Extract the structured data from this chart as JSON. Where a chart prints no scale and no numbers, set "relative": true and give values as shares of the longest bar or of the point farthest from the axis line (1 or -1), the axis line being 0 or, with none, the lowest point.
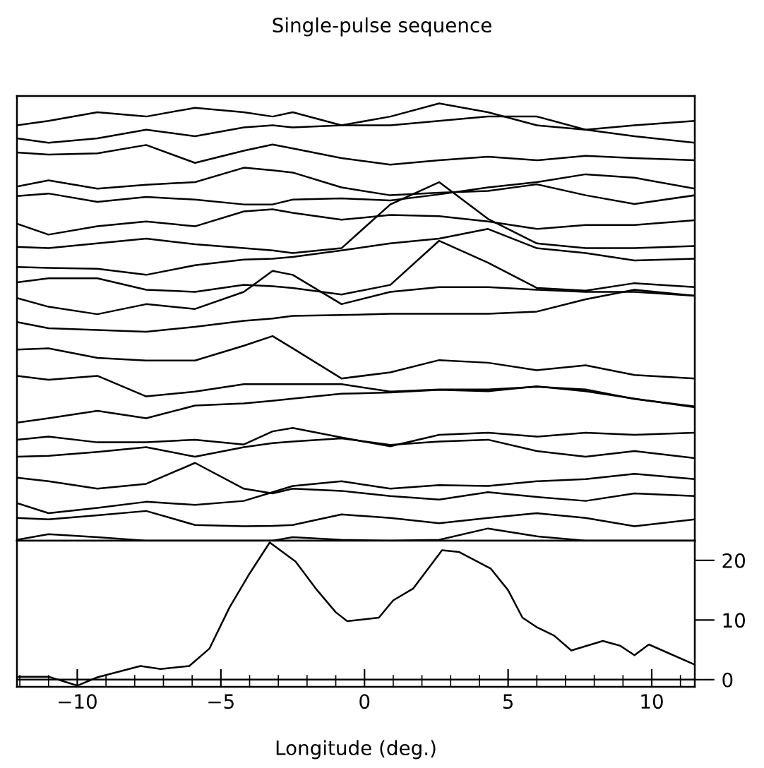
{
  "chart_data": [
    {
      "type": "line",
      "title": "Single-pulse sequence",
      "relative": true,
      "tick_labels": false,
      "xlim": [
        -12.1,
        11.5
      ],
      "x": [
        -12.1,
        -11.0,
        -9.3,
        -7.6,
        -5.9,
        -4.2,
        -3.2,
        -2.5,
        -0.8,
        0.9,
        2.6,
        4.3,
        6.0,
        7.7,
        9.4,
        11.5
      ],
      "series": [
        {
          "color": "#000000",
          "values": [
            0.95,
            0.96,
            0.98,
            0.97,
            0.99,
            0.98,
            0.97,
            0.98,
            0.95,
            0.97,
            1.0,
            0.98,
            0.95,
            0.94,
            0.95,
            0.96
          ]
        },
        {
          "color": "#000000",
          "values": [
            0.92,
            0.91,
            0.92,
            0.94,
            0.925,
            0.945,
            0.95,
            0.945,
            0.95,
            0.95,
            0.96,
            0.97,
            0.97,
            0.94,
            0.925,
            0.91
          ]
        },
        {
          "color": "#000000",
          "values": [
            0.888,
            0.883,
            0.886,
            0.905,
            0.864,
            0.892,
            0.906,
            0.897,
            0.875,
            0.86,
            0.87,
            0.878,
            0.87,
            0.88,
            0.875,
            0.87
          ]
        },
        {
          "color": "#000000",
          "values": [
            0.81,
            0.824,
            0.805,
            0.814,
            0.82,
            0.853,
            0.847,
            0.842,
            0.808,
            0.79,
            0.796,
            0.8,
            0.815,
            0.79,
            0.77,
            0.79
          ]
        },
        {
          "color": "#000000",
          "values": [
            0.788,
            0.794,
            0.775,
            0.786,
            0.78,
            0.769,
            0.769,
            0.78,
            0.783,
            0.778,
            0.792,
            0.808,
            0.82,
            0.838,
            0.83,
            0.805
          ]
        },
        {
          "color": "#000000",
          "values": [
            0.725,
            0.7,
            0.719,
            0.73,
            0.719,
            0.753,
            0.758,
            0.75,
            0.734,
            0.745,
            0.742,
            0.73,
            0.713,
            0.722,
            0.722,
            0.733
          ]
        },
        {
          "color": "#000000",
          "values": [
            0.672,
            0.669,
            0.68,
            0.691,
            0.678,
            0.669,
            0.664,
            0.658,
            0.669,
            0.769,
            0.82,
            0.736,
            0.68,
            0.669,
            0.669,
            0.674
          ]
        },
        {
          "color": "#000000",
          "values": [
            0.626,
            0.624,
            0.622,
            0.608,
            0.63,
            0.643,
            0.645,
            0.649,
            0.664,
            0.68,
            0.691,
            0.713,
            0.669,
            0.658,
            0.641,
            0.645
          ]
        },
        {
          "color": "#000000",
          "values": [
            0.591,
            0.6,
            0.6,
            0.574,
            0.569,
            0.585,
            0.582,
            0.578,
            0.563,
            0.585,
            0.686,
            0.636,
            0.578,
            0.572,
            0.589,
            0.58
          ]
        },
        {
          "color": "#000000",
          "values": [
            0.555,
            0.535,
            0.518,
            0.541,
            0.53,
            0.569,
            0.617,
            0.608,
            0.541,
            0.569,
            0.58,
            0.58,
            0.574,
            0.569,
            0.569,
            0.56
          ]
        },
        {
          "color": "#000000",
          "values": [
            0.5,
            0.486,
            0.482,
            0.478,
            0.489,
            0.503,
            0.508,
            0.514,
            0.516,
            0.519,
            0.519,
            0.519,
            0.524,
            0.552,
            0.574,
            0.56
          ]
        },
        {
          "color": "#000000",
          "values": [
            0.437,
            0.44,
            0.418,
            0.412,
            0.412,
            0.446,
            0.468,
            0.44,
            0.371,
            0.385,
            0.413,
            0.407,
            0.39,
            0.401,
            0.379,
            0.371
          ]
        },
        {
          "color": "#000000",
          "values": [
            0.377,
            0.368,
            0.377,
            0.33,
            0.341,
            0.358,
            0.358,
            0.358,
            0.358,
            0.341,
            0.346,
            0.346,
            0.352,
            0.346,
            0.324,
            0.307
          ]
        },
        {
          "color": "#000000",
          "values": [
            0.27,
            0.28,
            0.297,
            0.28,
            0.309,
            0.314,
            0.32,
            0.325,
            0.336,
            0.339,
            0.345,
            0.342,
            0.353,
            0.342,
            0.325,
            0.305
          ]
        },
        {
          "color": "#000000",
          "values": [
            0.231,
            0.238,
            0.225,
            0.225,
            0.231,
            0.22,
            0.25,
            0.258,
            0.236,
            0.216,
            0.242,
            0.247,
            0.238,
            0.247,
            0.242,
            0.247
          ]
        },
        {
          "color": "#000000",
          "values": [
            0.192,
            0.194,
            0.203,
            0.214,
            0.192,
            0.214,
            0.223,
            0.227,
            0.234,
            0.219,
            0.227,
            0.231,
            0.205,
            0.192,
            0.205,
            0.189
          ]
        },
        {
          "color": "#000000",
          "values": [
            0.144,
            0.136,
            0.119,
            0.13,
            0.178,
            0.119,
            0.108,
            0.119,
            0.114,
            0.102,
            0.094,
            0.111,
            0.1,
            0.091,
            0.108,
            0.102
          ]
        },
        {
          "color": "#000000",
          "values": [
            0.086,
            0.063,
            0.075,
            0.089,
            0.082,
            0.091,
            0.111,
            0.125,
            0.136,
            0.119,
            0.127,
            0.125,
            0.136,
            0.141,
            0.153,
            0.141
          ]
        },
        {
          "color": "#000000",
          "values": [
            0.052,
            0.049,
            0.058,
            0.068,
            0.036,
            0.033,
            0.034,
            0.036,
            0.06,
            0.052,
            0.04,
            0.052,
            0.063,
            0.052,
            0.033,
            0.049
          ]
        },
        {
          "color": "#000000",
          "values": [
            0.002,
            0.015,
            0.008,
            0.0,
            0.0,
            0.0,
            0.0,
            0.008,
            0.002,
            0.0,
            0.002,
            0.028,
            0.01,
            0.0,
            0.0,
            0.0
          ]
        }
      ]
    },
    {
      "type": "line",
      "xlabel": "Longitude (deg.)",
      "xlim": [
        -12.1,
        11.5
      ],
      "xticks": [
        {
          "value": -12,
          "label": null
        },
        {
          "value": -11,
          "label": null
        },
        -10,
        {
          "value": -9,
          "label": null
        },
        {
          "value": -8,
          "label": null
        },
        {
          "value": -7,
          "label": null
        },
        {
          "value": -6,
          "label": null
        },
        -5,
        {
          "value": -4,
          "label": null
        },
        {
          "value": -3,
          "label": null
        },
        {
          "value": -2,
          "label": null
        },
        {
          "value": -1,
          "label": null
        },
        0,
        {
          "value": 1,
          "label": null
        },
        {
          "value": 2,
          "label": null
        },
        {
          "value": 3,
          "label": null
        },
        {
          "value": 4,
          "label": null
        },
        5,
        {
          "value": 6,
          "label": null
        },
        {
          "value": 7,
          "label": null
        },
        {
          "value": 8,
          "label": null
        },
        {
          "value": 9,
          "label": null
        },
        10,
        {
          "value": 11,
          "label": null
        }
      ],
      "y2lim": [
        -1.2,
        23.3
      ],
      "y2ticks": [
        0,
        10,
        20
      ],
      "ref_lines": [
        {
          "axis": "y2",
          "value": 0,
          "color": "#000000"
        }
      ],
      "x": [
        -12.1,
        -11.0,
        -10.0,
        -9.3,
        -7.8,
        -7.1,
        -6.1,
        -5.4,
        -4.7,
        -4.0,
        -3.3,
        -2.4,
        -1.7,
        -1.0,
        -0.6,
        0.5,
        1.0,
        1.7,
        2.7,
        3.3,
        4.4,
        5.0,
        5.5,
        6.0,
        6.6,
        7.2,
        8.3,
        8.9,
        9.4,
        9.9,
        11.5
      ],
      "series": [
        {
          "color": "#000000",
          "axis": "y2",
          "values": [
            0.5,
            0.5,
            -1.0,
            0.4,
            2.3,
            1.8,
            2.3,
            5.2,
            12.1,
            17.8,
            23.0,
            19.8,
            15.3,
            11.3,
            9.8,
            10.4,
            13.3,
            15.3,
            21.7,
            21.4,
            18.6,
            15.0,
            10.4,
            8.8,
            7.4,
            4.9,
            6.5,
            5.7,
            4.1,
            5.9,
            2.5
          ]
        }
      ]
    }
  ]
}
